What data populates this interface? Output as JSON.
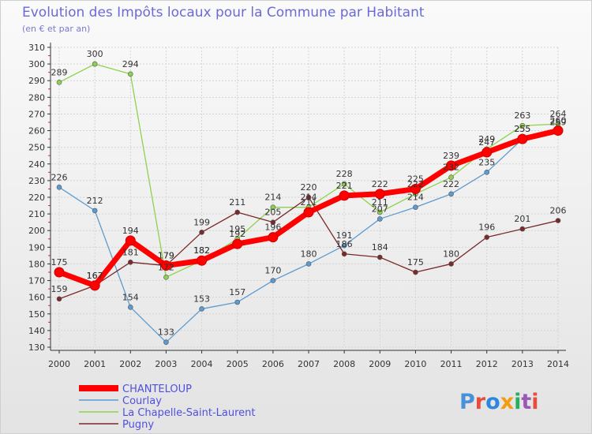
{
  "colors": {
    "title": "#6a6ad8",
    "legend_text": "#5050e0",
    "axis": "#333333",
    "grid": "#d4d4d4"
  },
  "chart_data": {
    "type": "line",
    "title": "Evolution des Impôts locaux pour la Commune par Habitant",
    "subtitle": "(en € et par an)",
    "xlabel": "",
    "ylabel": "",
    "x": [
      2000,
      2001,
      2002,
      2003,
      2004,
      2005,
      2006,
      2007,
      2008,
      2009,
      2010,
      2011,
      2012,
      2013,
      2014
    ],
    "x_tick_labels": [
      "2000",
      "2001",
      "2002",
      "2003",
      "2004",
      "2005",
      "2006",
      "2007",
      "2008",
      "2009",
      "2010",
      "2011",
      "2012",
      "2013",
      "2014"
    ],
    "ylim": [
      130,
      310
    ],
    "y_ticks": [
      130,
      140,
      150,
      160,
      170,
      180,
      190,
      200,
      210,
      220,
      230,
      240,
      250,
      260,
      270,
      280,
      290,
      300,
      310
    ],
    "grid": true,
    "legend_position": "bottom-left",
    "series": [
      {
        "name": "CHANTELOUP",
        "color": "#ff0000",
        "values": [
          175,
          167,
          194,
          179,
          182,
          192,
          196,
          211,
          221,
          222,
          225,
          239,
          247,
          255,
          260
        ]
      },
      {
        "name": "Courlay",
        "color": "#5c9bd1",
        "values": [
          226,
          212,
          154,
          133,
          153,
          157,
          170,
          180,
          191,
          207,
          214,
          222,
          235,
          255,
          259
        ]
      },
      {
        "name": "La Chapelle-Saint-Laurent",
        "color": "#8fd14f",
        "values": [
          289,
          300,
          294,
          172,
          182,
          195,
          214,
          214,
          228,
          211,
          222,
          232,
          249,
          263,
          264
        ]
      },
      {
        "name": "Pugny",
        "color": "#7a2a2a",
        "values": [
          159,
          167,
          181,
          179,
          199,
          211,
          205,
          220,
          186,
          184,
          175,
          180,
          196,
          201,
          206
        ]
      }
    ]
  },
  "brand": {
    "letters": [
      "P",
      "r",
      "o",
      "x",
      "i",
      "t",
      "i"
    ],
    "colors": [
      "#4a90d9",
      "#e84c3d",
      "#2e86de",
      "#f39c12",
      "#27ae60",
      "#9b59b6",
      "#e84c3d"
    ]
  }
}
